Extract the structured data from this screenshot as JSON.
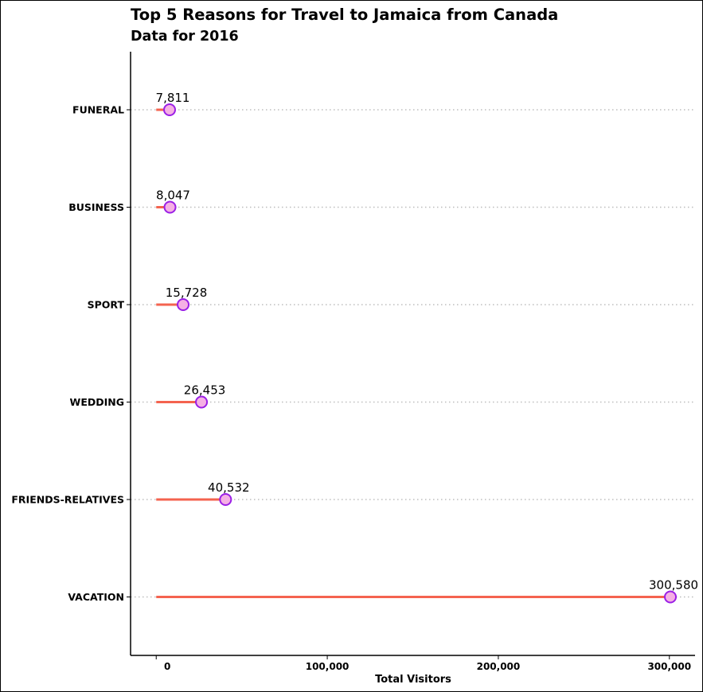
{
  "chart_data": {
    "type": "lollipop",
    "title": "Top 5 Reasons for Travel to Jamaica from Canada",
    "subtitle": "Data for 2016",
    "xlabel": "Total Visitors",
    "ylabel": "",
    "xlim": [
      -15000,
      315000
    ],
    "x_ticks": [
      0,
      100000,
      200000,
      300000
    ],
    "x_tick_labels": [
      "0",
      "100,000",
      "200,000",
      "300,000"
    ],
    "categories": [
      "FUNERAL",
      "BUSINESS",
      "SPORT",
      "WEDDING",
      "FRIENDS-RELATIVES",
      "VACATION"
    ],
    "values": [
      7811,
      8047,
      15728,
      26453,
      40532,
      300580
    ],
    "value_labels": [
      "7,811",
      "8,047",
      "15,728",
      "26,453",
      "40,532",
      "300,580"
    ],
    "grid": {
      "horizontal": "dotted",
      "vertical": false
    },
    "legend": "none",
    "colors": {
      "stem": "#f4634f",
      "point_fill": "#f5b0e4",
      "point_stroke": "#9b1fe6",
      "grid": "#bdbdbd",
      "axis": "#000000"
    }
  }
}
